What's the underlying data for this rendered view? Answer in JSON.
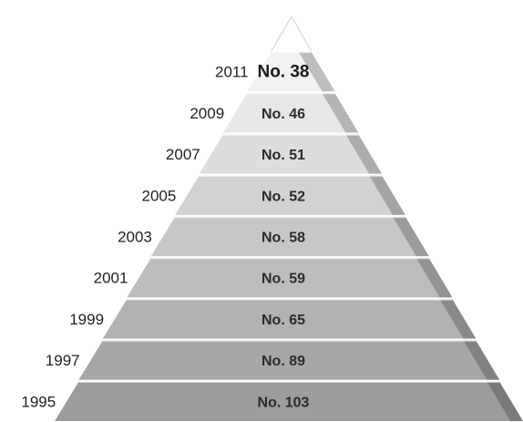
{
  "chart_data": {
    "type": "bar",
    "title": "",
    "xlabel": "",
    "ylabel": "",
    "categories": [
      "1995",
      "1997",
      "1999",
      "2001",
      "2003",
      "2005",
      "2007",
      "2009",
      "2011"
    ],
    "values": [
      103,
      89,
      65,
      59,
      58,
      52,
      51,
      46,
      38
    ],
    "labels": [
      "No. 103",
      "No. 89",
      "No. 65",
      "No. 59",
      "No. 58",
      "No. 52",
      "No. 51",
      "No. 46",
      "No. 38"
    ],
    "shape": "pyramid",
    "colors": {
      "top": "#f2f2f2",
      "bottom": "#9c9c9c",
      "edge": "#7a7a7a"
    }
  }
}
